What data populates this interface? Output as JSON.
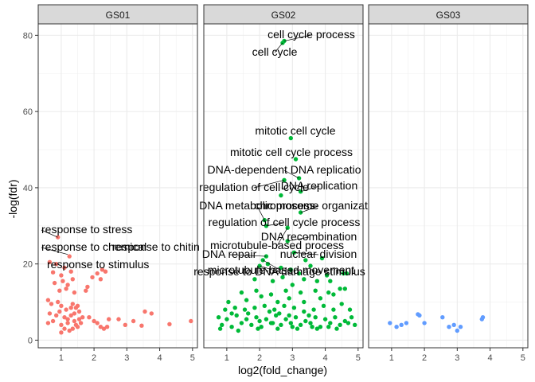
{
  "chart_data": {
    "type": "scatter",
    "xlabel": "log2(fold_change)",
    "ylabel": "-log(fdr)",
    "xlim": [
      0.3,
      5.15
    ],
    "ylim": [
      -2,
      83
    ],
    "x_ticks": [
      1,
      2,
      3,
      4,
      5
    ],
    "y_ticks": [
      0,
      20,
      40,
      60,
      80
    ],
    "grid": true,
    "facets": [
      {
        "title": "GS01",
        "color": "#F8766D",
        "points": [
          [
            0.9,
            27.0
          ],
          [
            1.25,
            22.0
          ],
          [
            0.65,
            20.5
          ],
          [
            0.85,
            20.0
          ],
          [
            1.1,
            19.0
          ],
          [
            1.3,
            18.0
          ],
          [
            0.75,
            17.8
          ],
          [
            1.0,
            17.0
          ],
          [
            1.35,
            16.0
          ],
          [
            1.05,
            15.5
          ],
          [
            0.8,
            15.0
          ],
          [
            1.2,
            14.5
          ],
          [
            1.15,
            13.5
          ],
          [
            0.95,
            13.0
          ],
          [
            1.4,
            12.5
          ],
          [
            2.25,
            18.5
          ],
          [
            2.1,
            17.5
          ],
          [
            2.35,
            18.0
          ],
          [
            1.95,
            16.5
          ],
          [
            2.2,
            16.0
          ],
          [
            1.8,
            14.0
          ],
          [
            1.75,
            13.0
          ],
          [
            0.6,
            10.5
          ],
          [
            0.7,
            9.5
          ],
          [
            0.9,
            10.0
          ],
          [
            1.0,
            9.0
          ],
          [
            1.15,
            8.0
          ],
          [
            1.3,
            8.5
          ],
          [
            1.35,
            9.5
          ],
          [
            1.45,
            8.5
          ],
          [
            1.5,
            9.0
          ],
          [
            1.55,
            7.5
          ],
          [
            0.65,
            7.0
          ],
          [
            0.85,
            6.5
          ],
          [
            0.95,
            7.5
          ],
          [
            1.1,
            6.0
          ],
          [
            1.2,
            5.5
          ],
          [
            1.3,
            6.5
          ],
          [
            1.4,
            5.0
          ],
          [
            1.45,
            4.0
          ],
          [
            1.5,
            3.5
          ],
          [
            1.55,
            5.5
          ],
          [
            1.6,
            4.5
          ],
          [
            0.6,
            4.5
          ],
          [
            0.75,
            5.0
          ],
          [
            1.0,
            4.0
          ],
          [
            1.1,
            3.0
          ],
          [
            1.25,
            2.5
          ],
          [
            1.35,
            3.0
          ],
          [
            1.0,
            2.0
          ],
          [
            1.2,
            4.5
          ],
          [
            1.4,
            7.0
          ],
          [
            1.65,
            6.0
          ],
          [
            1.85,
            6.0
          ],
          [
            2.0,
            5.0
          ],
          [
            2.1,
            4.5
          ],
          [
            2.3,
            3.0
          ],
          [
            2.4,
            3.5
          ],
          [
            2.45,
            5.5
          ],
          [
            2.2,
            3.5
          ],
          [
            2.75,
            5.5
          ],
          [
            2.95,
            4.0
          ],
          [
            3.2,
            5.0
          ],
          [
            3.45,
            3.8
          ],
          [
            3.55,
            7.5
          ],
          [
            3.75,
            7.0
          ],
          [
            4.3,
            4.2
          ],
          [
            4.95,
            5.0
          ]
        ],
        "labels": [
          {
            "text": "response to stress",
            "x": 0.9,
            "y": 27.0
          },
          {
            "text": "response to chemical",
            "x": 1.2,
            "y": 22.5
          },
          {
            "text": "response to chitin",
            "x": 2.4,
            "y": 22.5
          },
          {
            "text": "response to stimulus",
            "x": 0.65,
            "y": 20.5
          }
        ]
      },
      {
        "title": "GS02",
        "color": "#00BA38",
        "points": [
          [
            2.75,
            78.5
          ],
          [
            2.7,
            78.0
          ],
          [
            2.95,
            53.0
          ],
          [
            3.1,
            47.5
          ],
          [
            3.2,
            42.5
          ],
          [
            2.75,
            42.0
          ],
          [
            3.25,
            39.0
          ],
          [
            2.65,
            38.0
          ],
          [
            2.15,
            31.5
          ],
          [
            3.25,
            33.5
          ],
          [
            2.85,
            29.5
          ],
          [
            2.2,
            30.0
          ],
          [
            2.85,
            26.0
          ],
          [
            3.05,
            23.0
          ],
          [
            2.2,
            22.0
          ],
          [
            2.1,
            21.0
          ],
          [
            3.4,
            21.0
          ],
          [
            3.9,
            21.5
          ],
          [
            2.0,
            19.5
          ],
          [
            2.25,
            20.0
          ],
          [
            2.65,
            19.0
          ],
          [
            2.95,
            18.5
          ],
          [
            3.2,
            17.5
          ],
          [
            3.55,
            19.5
          ],
          [
            4.05,
            17.0
          ],
          [
            4.55,
            17.5
          ],
          [
            1.85,
            16.0
          ],
          [
            2.4,
            15.5
          ],
          [
            2.7,
            16.5
          ],
          [
            3.0,
            14.5
          ],
          [
            3.35,
            16.0
          ],
          [
            3.75,
            15.5
          ],
          [
            4.15,
            15.5
          ],
          [
            4.65,
            17.5
          ],
          [
            1.45,
            12.5
          ],
          [
            1.9,
            13.0
          ],
          [
            2.35,
            12.0
          ],
          [
            2.8,
            13.0
          ],
          [
            3.25,
            12.5
          ],
          [
            3.7,
            13.0
          ],
          [
            4.25,
            12.0
          ],
          [
            4.45,
            13.5
          ],
          [
            1.05,
            10.0
          ],
          [
            1.6,
            10.5
          ],
          [
            2.05,
            11.5
          ],
          [
            2.55,
            10.0
          ],
          [
            2.9,
            11.0
          ],
          [
            3.35,
            10.0
          ],
          [
            3.85,
            11.0
          ],
          [
            4.1,
            12.5
          ],
          [
            4.6,
            13.5
          ],
          [
            0.95,
            8.0
          ],
          [
            1.25,
            8.5
          ],
          [
            1.55,
            8.0
          ],
          [
            1.85,
            8.5
          ],
          [
            2.15,
            9.0
          ],
          [
            2.45,
            8.0
          ],
          [
            2.75,
            9.0
          ],
          [
            3.05,
            8.5
          ],
          [
            3.35,
            7.5
          ],
          [
            3.65,
            8.0
          ],
          [
            3.95,
            9.0
          ],
          [
            4.25,
            8.0
          ],
          [
            4.5,
            9.5
          ],
          [
            4.75,
            8.0
          ],
          [
            0.75,
            6.0
          ],
          [
            1.0,
            5.5
          ],
          [
            1.3,
            6.5
          ],
          [
            1.6,
            5.5
          ],
          [
            1.9,
            6.0
          ],
          [
            2.2,
            5.5
          ],
          [
            2.5,
            6.5
          ],
          [
            2.8,
            5.5
          ],
          [
            3.1,
            6.0
          ],
          [
            3.4,
            5.0
          ],
          [
            3.7,
            6.0
          ],
          [
            4.0,
            5.5
          ],
          [
            4.3,
            6.0
          ],
          [
            4.6,
            5.0
          ],
          [
            0.85,
            4.0
          ],
          [
            1.15,
            3.5
          ],
          [
            1.45,
            4.5
          ],
          [
            1.75,
            4.0
          ],
          [
            2.05,
            3.5
          ],
          [
            2.35,
            4.5
          ],
          [
            2.65,
            4.0
          ],
          [
            2.95,
            4.5
          ],
          [
            3.25,
            4.0
          ],
          [
            3.55,
            4.5
          ],
          [
            3.85,
            3.5
          ],
          [
            4.15,
            4.5
          ],
          [
            4.45,
            4.0
          ],
          [
            4.7,
            4.5
          ],
          [
            0.8,
            3.0
          ],
          [
            1.35,
            2.5
          ],
          [
            1.95,
            3.0
          ],
          [
            2.55,
            3.0
          ],
          [
            3.15,
            3.0
          ],
          [
            3.75,
            3.0
          ],
          [
            4.35,
            3.0
          ],
          [
            1.65,
            7.0
          ],
          [
            2.3,
            7.5
          ],
          [
            2.6,
            7.0
          ],
          [
            2.9,
            6.5
          ],
          [
            3.5,
            6.5
          ],
          [
            1.15,
            7.0
          ],
          [
            2.0,
            5.0
          ],
          [
            2.4,
            4.5
          ],
          [
            3.0,
            3.5
          ],
          [
            3.6,
            3.5
          ],
          [
            4.1,
            3.5
          ],
          [
            4.8,
            6.0
          ],
          [
            4.9,
            4.0
          ]
        ],
        "labels": [
          {
            "text": "cell cycle process",
            "x": 2.75,
            "y": 78.5
          },
          {
            "text": "cell cycle",
            "x": 2.7,
            "y": 78.0
          },
          {
            "text": "mitotic cell cycle",
            "x": 2.95,
            "y": 53.0
          },
          {
            "text": "mitotic cell cycle process",
            "x": 3.1,
            "y": 47.5
          },
          {
            "text": "DNA-dependent DNA replicatio",
            "x": 3.2,
            "y": 42.5
          },
          {
            "text": "regulation of cell cycle",
            "x": 2.75,
            "y": 42.0
          },
          {
            "text": "DNA replication",
            "x": 3.25,
            "y": 39.0
          },
          {
            "text": "chromosome organization",
            "x": 3.25,
            "y": 33.5
          },
          {
            "text": "DNA metabolic process",
            "x": 2.15,
            "y": 31.5
          },
          {
            "text": "regulation of cell cycle process",
            "x": 2.2,
            "y": 30.0
          },
          {
            "text": "DNA recombination",
            "x": 2.85,
            "y": 26.0
          },
          {
            "text": "microtubule-based process",
            "x": 2.85,
            "y": 29.5
          },
          {
            "text": "DNA repair",
            "x": 2.2,
            "y": 22.0
          },
          {
            "text": "nuclear division",
            "x": 3.05,
            "y": 23.0
          },
          {
            "text": "microtubule-based movement",
            "x": 2.1,
            "y": 21.0
          },
          {
            "text": "response to DNA damage stimulus",
            "x": 2.0,
            "y": 19.5
          }
        ]
      },
      {
        "title": "GS03",
        "color": "#619CFF",
        "points": [
          [
            0.95,
            4.5
          ],
          [
            1.15,
            3.5
          ],
          [
            1.3,
            4.0
          ],
          [
            1.45,
            4.5
          ],
          [
            1.85,
            6.5
          ],
          [
            1.8,
            6.8
          ],
          [
            2.0,
            4.5
          ],
          [
            2.55,
            6.0
          ],
          [
            2.75,
            3.5
          ],
          [
            2.9,
            4.0
          ],
          [
            3.0,
            2.5
          ],
          [
            3.1,
            3.5
          ],
          [
            3.75,
            5.5
          ],
          [
            3.78,
            6.0
          ]
        ],
        "labels": []
      }
    ]
  }
}
